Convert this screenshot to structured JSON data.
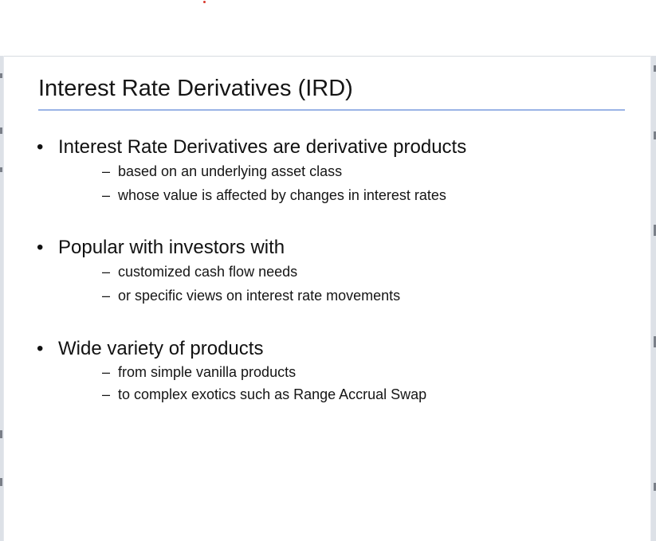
{
  "slide": {
    "title": "Interest Rate Derivatives (IRD)",
    "bullets": [
      {
        "text": "Interest Rate Derivatives are derivative products",
        "subitems": [
          "based on an underlying asset class",
          "whose value is affected by changes in interest rates"
        ]
      },
      {
        "text": "Popular with investors with",
        "subitems": [
          "customized cash flow needs",
          "or specific views on interest rate movements"
        ]
      },
      {
        "text": "Wide variety of products",
        "subitems": [
          "from simple vanilla products",
          "to complex exotics such as Range Accrual Swap"
        ]
      }
    ]
  },
  "symbols": {
    "bullet": "•",
    "dash": "–"
  },
  "colors": {
    "title_rule": "#9bb4e6",
    "viewer_background": "#e6e9ee",
    "indicator_dot": "#d9382c"
  }
}
